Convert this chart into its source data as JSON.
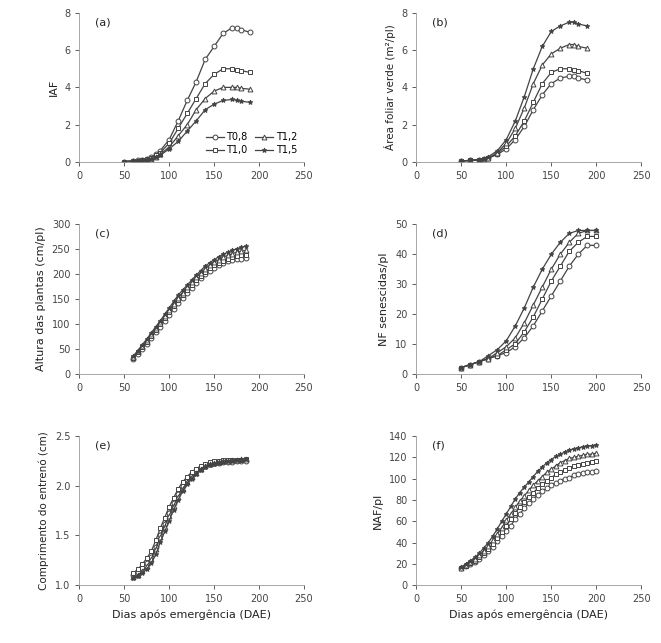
{
  "panel_labels": [
    "(a)",
    "(b)",
    "(c)",
    "(d)",
    "(e)",
    "(f)"
  ],
  "legend_labels": [
    "T0,8",
    "T1,0",
    "T1,2",
    "T1,5"
  ],
  "markers": [
    "o",
    "s",
    "^",
    "*"
  ],
  "line_color": "#444444",
  "xlabel_common": "Dias após emergência (DAE)",
  "panel_a": {
    "ylabel": "IAF",
    "xlim": [
      0,
      250
    ],
    "ylim": [
      0,
      8
    ],
    "xticks": [
      0,
      50,
      100,
      150,
      200,
      250
    ],
    "yticks": [
      0,
      2,
      4,
      6,
      8
    ],
    "x_T08": [
      50,
      60,
      65,
      70,
      75,
      80,
      85,
      90,
      100,
      110,
      120,
      130,
      140,
      150,
      160,
      170,
      175,
      180,
      190
    ],
    "y_T08": [
      0.02,
      0.05,
      0.08,
      0.12,
      0.18,
      0.25,
      0.4,
      0.6,
      1.2,
      2.2,
      3.3,
      4.3,
      5.5,
      6.2,
      6.9,
      7.2,
      7.2,
      7.1,
      6.95
    ],
    "x_T10": [
      50,
      60,
      65,
      70,
      75,
      80,
      85,
      90,
      100,
      110,
      120,
      130,
      140,
      150,
      160,
      170,
      175,
      180,
      190
    ],
    "y_T10": [
      0.02,
      0.05,
      0.07,
      0.1,
      0.15,
      0.22,
      0.35,
      0.5,
      1.0,
      1.8,
      2.6,
      3.4,
      4.2,
      4.7,
      5.0,
      5.0,
      4.95,
      4.9,
      4.8
    ],
    "x_T12": [
      50,
      60,
      65,
      70,
      75,
      80,
      85,
      90,
      100,
      110,
      120,
      130,
      140,
      150,
      160,
      170,
      175,
      180,
      190
    ],
    "y_T12": [
      0.02,
      0.04,
      0.06,
      0.09,
      0.13,
      0.18,
      0.28,
      0.4,
      0.8,
      1.4,
      2.0,
      2.8,
      3.4,
      3.8,
      4.0,
      4.0,
      4.0,
      3.95,
      3.9
    ],
    "x_T15": [
      50,
      60,
      65,
      70,
      75,
      80,
      85,
      90,
      100,
      110,
      120,
      130,
      140,
      150,
      160,
      170,
      175,
      180,
      190
    ],
    "y_T15": [
      0.02,
      0.04,
      0.06,
      0.08,
      0.12,
      0.16,
      0.25,
      0.35,
      0.7,
      1.1,
      1.65,
      2.2,
      2.8,
      3.1,
      3.3,
      3.35,
      3.3,
      3.25,
      3.2
    ]
  },
  "panel_b": {
    "ylabel": "Área foliar verde (m²/pl)",
    "xlim": [
      0,
      250
    ],
    "ylim": [
      0,
      8
    ],
    "xticks": [
      0,
      50,
      100,
      150,
      200,
      250
    ],
    "yticks": [
      0,
      2,
      4,
      6,
      8
    ],
    "x_T08": [
      50,
      60,
      70,
      75,
      80,
      90,
      100,
      110,
      120,
      130,
      140,
      150,
      160,
      170,
      175,
      180,
      190
    ],
    "y_T08": [
      0.05,
      0.08,
      0.12,
      0.15,
      0.2,
      0.4,
      0.7,
      1.2,
      1.9,
      2.8,
      3.6,
      4.2,
      4.5,
      4.6,
      4.6,
      4.5,
      4.4
    ],
    "x_T10": [
      50,
      60,
      70,
      75,
      80,
      90,
      100,
      110,
      120,
      130,
      140,
      150,
      160,
      170,
      175,
      180,
      190
    ],
    "y_T10": [
      0.05,
      0.08,
      0.12,
      0.15,
      0.2,
      0.45,
      0.85,
      1.4,
      2.2,
      3.2,
      4.2,
      4.8,
      5.0,
      5.0,
      4.95,
      4.9,
      4.75
    ],
    "x_T12": [
      50,
      60,
      70,
      75,
      80,
      90,
      100,
      110,
      120,
      130,
      140,
      150,
      160,
      170,
      175,
      180,
      190
    ],
    "y_T12": [
      0.05,
      0.08,
      0.12,
      0.15,
      0.2,
      0.5,
      1.0,
      1.8,
      2.9,
      4.2,
      5.2,
      5.8,
      6.1,
      6.3,
      6.3,
      6.2,
      6.1
    ],
    "x_T15": [
      50,
      60,
      70,
      75,
      80,
      90,
      100,
      110,
      120,
      130,
      140,
      150,
      160,
      170,
      175,
      180,
      190
    ],
    "y_T15": [
      0.05,
      0.08,
      0.12,
      0.18,
      0.28,
      0.6,
      1.2,
      2.2,
      3.5,
      5.0,
      6.2,
      7.0,
      7.3,
      7.5,
      7.5,
      7.4,
      7.3
    ]
  },
  "panel_c": {
    "ylabel": "Altura das plantas (cm/pl)",
    "xlim": [
      0,
      250
    ],
    "ylim": [
      0,
      300
    ],
    "xticks": [
      0,
      50,
      100,
      150,
      200,
      250
    ],
    "yticks": [
      0,
      50,
      100,
      150,
      200,
      250,
      300
    ],
    "x_all": [
      60,
      65,
      70,
      75,
      80,
      85,
      90,
      95,
      100,
      105,
      110,
      115,
      120,
      125,
      130,
      135,
      140,
      145,
      150,
      155,
      160,
      165,
      170,
      175,
      180,
      185
    ],
    "y_T08": [
      30,
      40,
      50,
      60,
      72,
      83,
      94,
      106,
      118,
      130,
      142,
      152,
      162,
      172,
      182,
      192,
      200,
      207,
      213,
      218,
      222,
      226,
      228,
      230,
      231,
      232
    ],
    "y_T10": [
      32,
      43,
      53,
      64,
      76,
      87,
      99,
      111,
      123,
      135,
      147,
      158,
      168,
      178,
      188,
      197,
      205,
      212,
      218,
      223,
      227,
      231,
      234,
      236,
      238,
      239
    ],
    "y_T12": [
      34,
      45,
      56,
      67,
      79,
      91,
      103,
      116,
      128,
      140,
      153,
      163,
      174,
      184,
      194,
      203,
      211,
      218,
      224,
      229,
      234,
      238,
      241,
      244,
      246,
      248
    ],
    "y_T15": [
      35,
      46,
      58,
      69,
      82,
      94,
      106,
      119,
      132,
      145,
      158,
      168,
      178,
      188,
      198,
      207,
      216,
      223,
      229,
      235,
      240,
      244,
      248,
      251,
      254,
      256
    ]
  },
  "panel_d": {
    "ylabel": "NF senescidas/pl",
    "xlim": [
      0,
      250
    ],
    "ylim": [
      0,
      50
    ],
    "xticks": [
      0,
      50,
      100,
      150,
      200,
      250
    ],
    "yticks": [
      0,
      10,
      20,
      30,
      40,
      50
    ],
    "x_all": [
      50,
      60,
      70,
      80,
      90,
      100,
      110,
      120,
      130,
      140,
      150,
      160,
      170,
      180,
      190,
      200
    ],
    "y_T08": [
      2,
      3,
      4,
      5,
      6,
      7,
      9,
      12,
      16,
      21,
      26,
      31,
      36,
      40,
      43,
      43
    ],
    "y_T10": [
      2,
      3,
      4,
      5,
      6,
      8,
      10,
      14,
      19,
      25,
      31,
      36,
      41,
      44,
      46,
      46
    ],
    "y_T12": [
      2,
      3,
      4,
      5,
      7,
      9,
      12,
      17,
      23,
      29,
      35,
      40,
      44,
      47,
      48,
      48
    ],
    "y_T15": [
      2,
      3,
      4,
      6,
      8,
      11,
      16,
      22,
      29,
      35,
      40,
      44,
      47,
      48,
      48,
      48
    ]
  },
  "panel_e": {
    "ylabel": "Comprimento do entrenó (cm)",
    "xlim": [
      0,
      250
    ],
    "ylim": [
      1.0,
      2.5
    ],
    "xticks": [
      0,
      50,
      100,
      150,
      200,
      250
    ],
    "yticks": [
      1.0,
      1.5,
      2.0,
      2.5
    ],
    "x_all": [
      60,
      65,
      70,
      75,
      80,
      85,
      90,
      95,
      100,
      105,
      110,
      115,
      120,
      125,
      130,
      135,
      140,
      145,
      150,
      155,
      160,
      165,
      170,
      175,
      180,
      185
    ],
    "y_T08": [
      1.1,
      1.13,
      1.17,
      1.22,
      1.28,
      1.38,
      1.5,
      1.62,
      1.73,
      1.83,
      1.92,
      2.0,
      2.06,
      2.11,
      2.15,
      2.18,
      2.2,
      2.22,
      2.23,
      2.23,
      2.24,
      2.24,
      2.24,
      2.25,
      2.25,
      2.25
    ],
    "y_T10": [
      1.12,
      1.16,
      1.21,
      1.27,
      1.34,
      1.45,
      1.57,
      1.68,
      1.79,
      1.88,
      1.97,
      2.04,
      2.09,
      2.14,
      2.17,
      2.2,
      2.22,
      2.24,
      2.25,
      2.25,
      2.26,
      2.26,
      2.26,
      2.26,
      2.26,
      2.27
    ],
    "y_T12": [
      1.08,
      1.1,
      1.14,
      1.19,
      1.26,
      1.36,
      1.48,
      1.59,
      1.7,
      1.8,
      1.89,
      1.97,
      2.04,
      2.09,
      2.13,
      2.17,
      2.2,
      2.22,
      2.23,
      2.24,
      2.25,
      2.25,
      2.26,
      2.26,
      2.27,
      2.27
    ],
    "y_T15": [
      1.07,
      1.09,
      1.12,
      1.16,
      1.22,
      1.31,
      1.43,
      1.54,
      1.65,
      1.76,
      1.86,
      1.95,
      2.02,
      2.07,
      2.12,
      2.16,
      2.19,
      2.21,
      2.22,
      2.23,
      2.24,
      2.25,
      2.25,
      2.26,
      2.26,
      2.27
    ]
  },
  "panel_f": {
    "ylabel": "NAF/pl",
    "xlim": [
      0,
      250
    ],
    "ylim": [
      0,
      140
    ],
    "xticks": [
      0,
      50,
      100,
      150,
      200,
      250
    ],
    "yticks": [
      0,
      20,
      40,
      60,
      80,
      100,
      120,
      140
    ],
    "x_all": [
      50,
      55,
      60,
      65,
      70,
      75,
      80,
      85,
      90,
      95,
      100,
      105,
      110,
      115,
      120,
      125,
      130,
      135,
      140,
      145,
      150,
      155,
      160,
      165,
      170,
      175,
      180,
      185,
      190,
      195,
      200
    ],
    "y_T08": [
      16,
      18,
      20,
      22,
      25,
      28,
      32,
      36,
      41,
      46,
      51,
      56,
      62,
      67,
      72,
      77,
      81,
      85,
      88,
      91,
      94,
      96,
      98,
      100,
      101,
      103,
      104,
      105,
      106,
      106,
      107
    ],
    "y_T10": [
      16,
      18,
      21,
      23,
      26,
      30,
      34,
      39,
      44,
      50,
      56,
      62,
      68,
      73,
      78,
      83,
      87,
      91,
      95,
      98,
      101,
      104,
      106,
      108,
      110,
      112,
      113,
      114,
      115,
      116,
      117
    ],
    "y_T12": [
      16,
      19,
      22,
      25,
      28,
      32,
      37,
      42,
      48,
      54,
      61,
      67,
      73,
      79,
      84,
      89,
      94,
      98,
      102,
      106,
      109,
      112,
      115,
      117,
      119,
      120,
      121,
      122,
      123,
      123,
      124
    ],
    "y_T15": [
      17,
      20,
      23,
      26,
      30,
      35,
      40,
      46,
      53,
      60,
      67,
      74,
      81,
      87,
      92,
      97,
      102,
      107,
      111,
      115,
      118,
      121,
      123,
      125,
      127,
      128,
      129,
      130,
      131,
      131,
      132
    ]
  }
}
